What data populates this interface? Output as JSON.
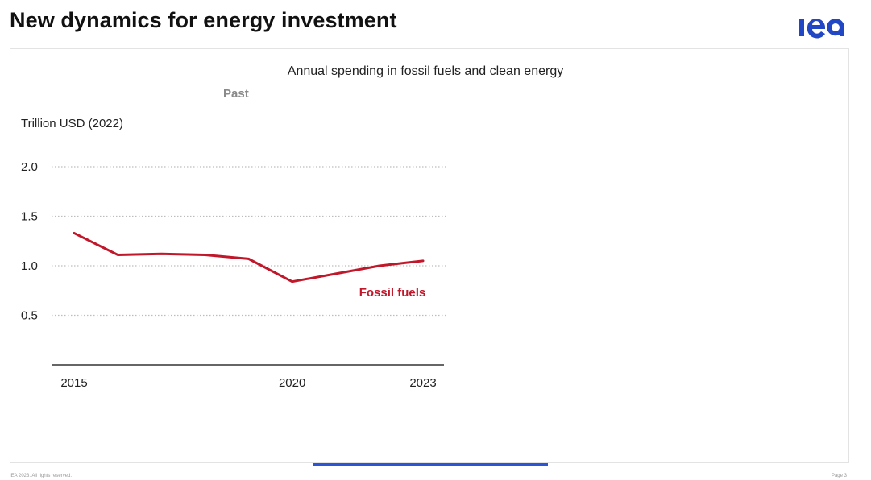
{
  "slide": {
    "title": "New dynamics for energy investment",
    "logo_text": "iea",
    "footer_left": "IEA 2023. All rights reserved.",
    "footer_right": "Page 3"
  },
  "colors": {
    "fossil": "#c0182a",
    "logo": "#2147c5",
    "grid": "#bdbdbd",
    "progress": "#2b55d4"
  },
  "chart_data": {
    "type": "line",
    "title": "Annual spending in fossil fuels and clean energy",
    "phase_label": "Past",
    "ylabel": "Trillion USD (2022)",
    "ylim": [
      0,
      2.0
    ],
    "yticks": [
      0.5,
      1.0,
      1.5,
      2.0
    ],
    "ytick_labels": [
      "0.5",
      "1.0",
      "1.5",
      "2.0"
    ],
    "xticks": [
      2015,
      2020,
      2023
    ],
    "xtick_labels": [
      "2015",
      "2020",
      "2023"
    ],
    "x": [
      2015,
      2016,
      2017,
      2018,
      2019,
      2020,
      2021,
      2022,
      2023
    ],
    "series": [
      {
        "name": "Fossil fuels",
        "values": [
          1.33,
          1.11,
          1.12,
          1.11,
          1.07,
          0.84,
          0.92,
          1.0,
          1.05
        ]
      }
    ],
    "grid": "horizontal dotted",
    "legend": "inline label below line"
  }
}
